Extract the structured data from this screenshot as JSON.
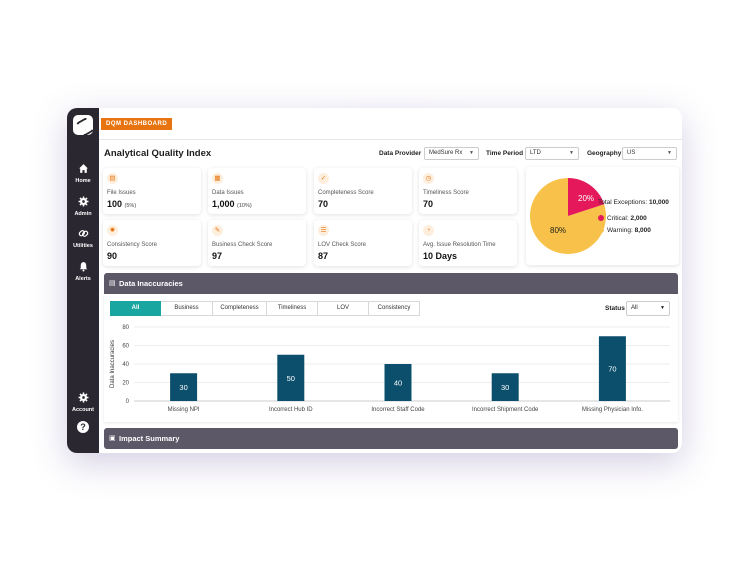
{
  "sidebar": {
    "items": [
      {
        "label": "Home",
        "icon": "home-icon"
      },
      {
        "label": "Admin",
        "icon": "gear-icon"
      },
      {
        "label": "Utilities",
        "icon": "link-icon"
      },
      {
        "label": "Alerts",
        "icon": "bell-icon"
      }
    ],
    "account": {
      "label": "Account",
      "icon": "gear-icon"
    },
    "help": {
      "label": "?",
      "icon": "help-icon"
    }
  },
  "header": {
    "badge": "DQM DASHBOARD"
  },
  "page": {
    "title": "Analytical Quality Index"
  },
  "filters": [
    {
      "label": "Data Provider",
      "value": "MedSure Rx"
    },
    {
      "label": "Time Period",
      "value": "LTD"
    },
    {
      "label": "Geography",
      "value": "US"
    }
  ],
  "kpis": [
    {
      "label": "File Issues",
      "value": "100",
      "sub": "(5%)",
      "icon": "file-icon"
    },
    {
      "label": "Data Issues",
      "value": "1,000",
      "sub": "(10%)",
      "icon": "files-icon"
    },
    {
      "label": "Completeness Score",
      "value": "70",
      "sub": "",
      "icon": "check-circle-icon"
    },
    {
      "label": "Timeliness Score",
      "value": "70",
      "sub": "",
      "icon": "clock-icon"
    },
    {
      "label": "Consistency Score",
      "value": "90",
      "sub": "",
      "icon": "gear-icon"
    },
    {
      "label": "Business Check Score",
      "value": "97",
      "sub": "",
      "icon": "tool-icon"
    },
    {
      "label": "LOV Check Score",
      "value": "87",
      "sub": "",
      "icon": "list-icon"
    },
    {
      "label": "Avg. Issue Resolution Time",
      "value": "10 Days",
      "sub": "",
      "icon": "timer-icon"
    }
  ],
  "exceptions": {
    "total_label": "Total Exceptions:",
    "total_value": "10,000",
    "critical_label": "Critical:",
    "critical_value": "2,000",
    "warning_label": "Warning:",
    "warning_value": "8,000",
    "critical_pct": "20%",
    "warning_pct": "80%",
    "colors": {
      "critical": "#e4185a",
      "warning": "#f8c24a"
    }
  },
  "data_inaccuracies": {
    "title": "Data Inaccuracies",
    "tabs": [
      "All",
      "Business",
      "Completeness",
      "Timeliness",
      "LOV",
      "Consistency"
    ],
    "active_tab": "All",
    "status_label": "Status",
    "status_value": "All"
  },
  "chart_data": {
    "type": "bar",
    "categories": [
      "Missing NPI",
      "Incorrect Hub ID",
      "Incorrect Staff Code",
      "Incorrect Shipment Code",
      "Missing Physician Info."
    ],
    "values": [
      30,
      50,
      40,
      30,
      70
    ],
    "title": "",
    "xlabel": "",
    "ylabel": "Data Inaccuracies",
    "ylim": [
      0,
      80
    ],
    "yticks": [
      0,
      20,
      40,
      60,
      80
    ],
    "grid": true,
    "bar_color": "#0b4f6c"
  },
  "impact": {
    "title": "Impact Summary"
  }
}
